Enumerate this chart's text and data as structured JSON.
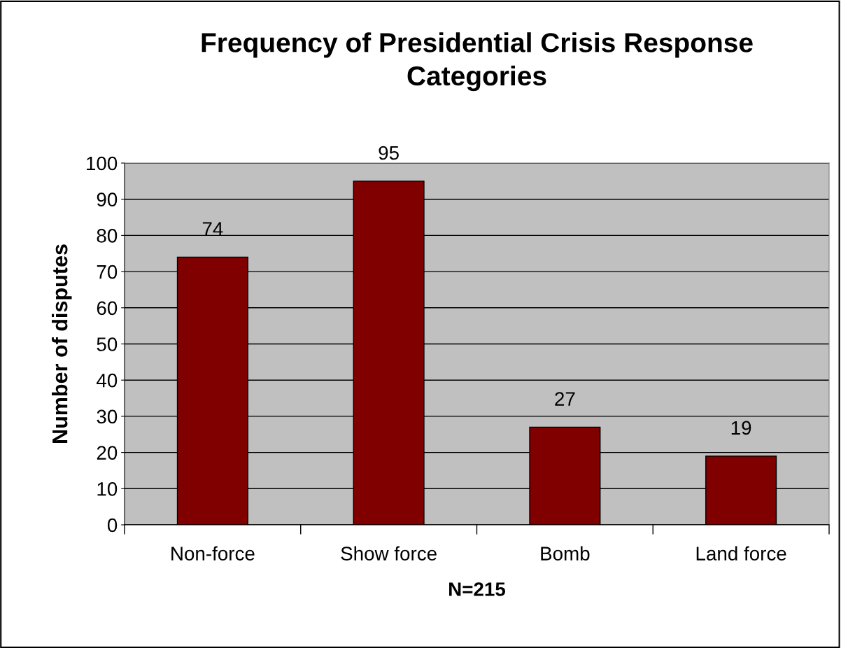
{
  "chart_data": {
    "type": "bar",
    "title": "Frequency of Presidential Crisis Response\nCategories",
    "categories": [
      "Non-force",
      "Show force",
      "Bomb",
      "Land force"
    ],
    "values": [
      74,
      95,
      27,
      19
    ],
    "color": "#800000",
    "ylabel": "Number of disputes",
    "xlabel": "N=215",
    "ylim": [
      0,
      100
    ],
    "yticks": [
      0,
      10,
      20,
      30,
      40,
      50,
      60,
      70,
      80,
      90,
      100
    ],
    "grid": "y",
    "data_labels": true
  }
}
